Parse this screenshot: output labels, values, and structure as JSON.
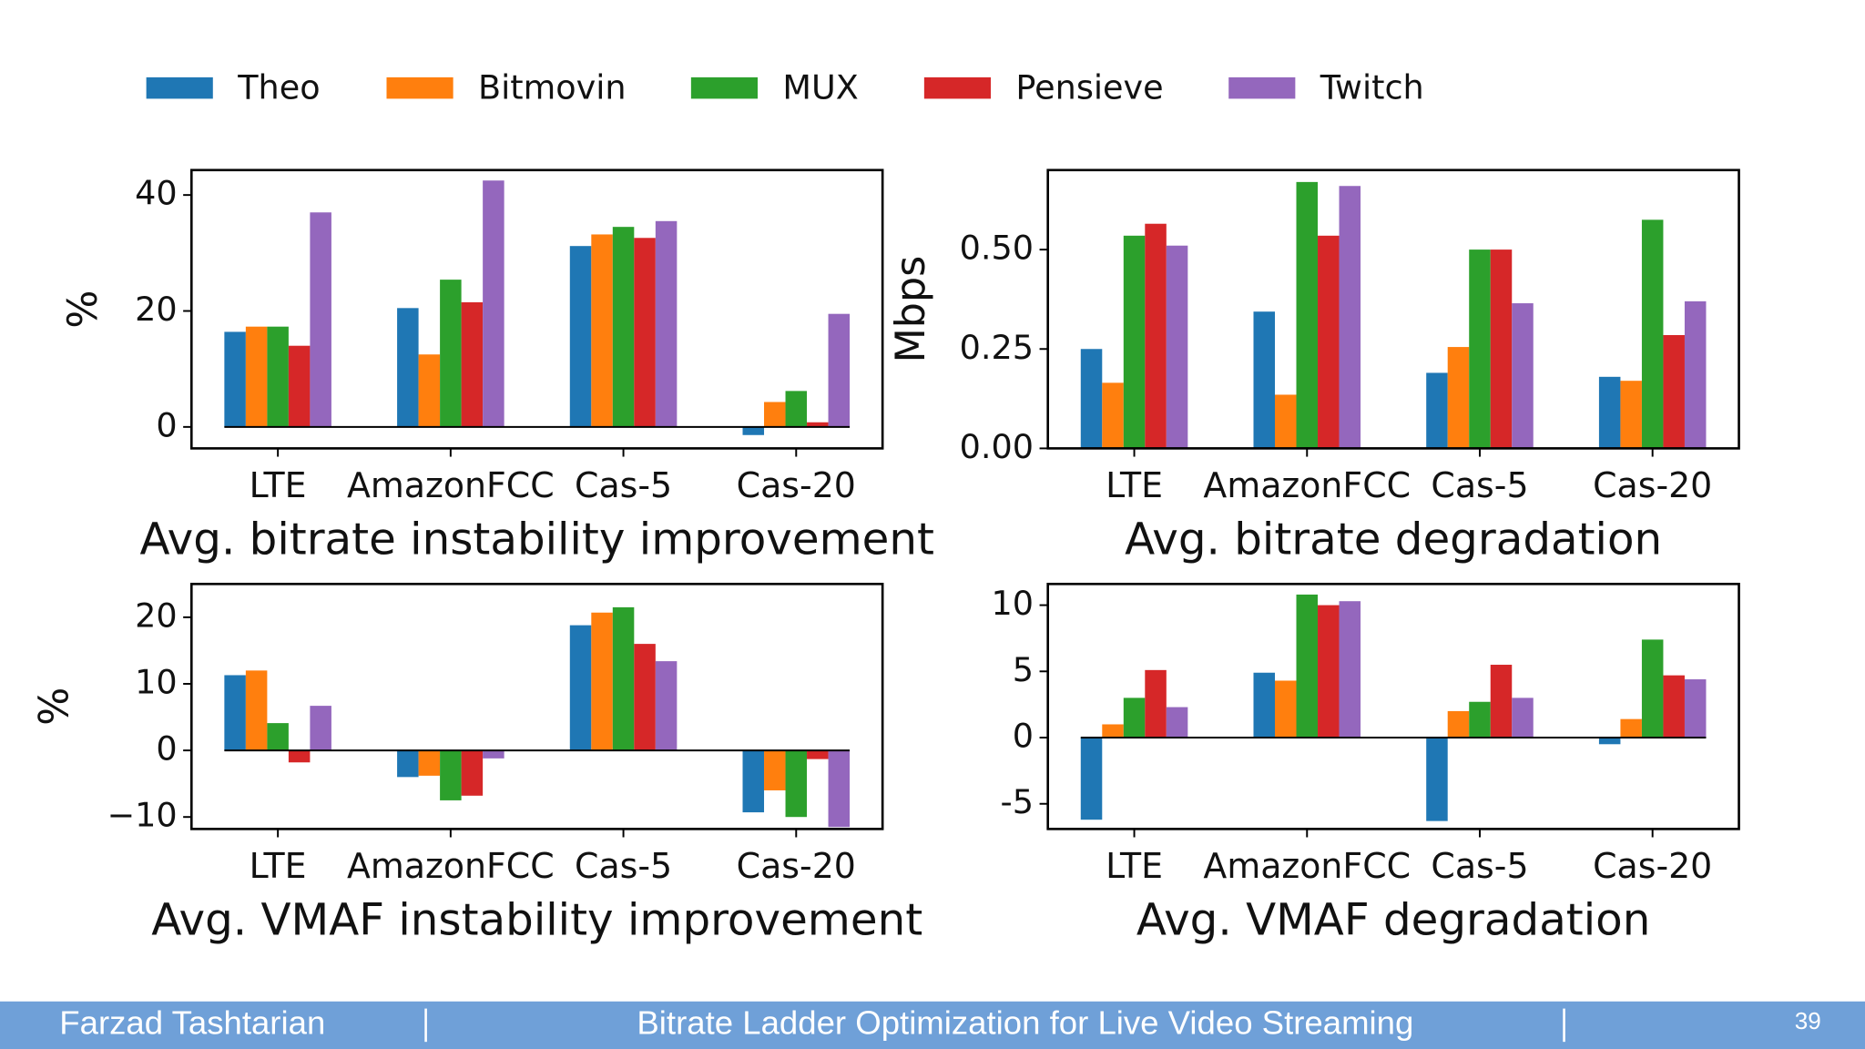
{
  "chart_data": [
    {
      "type": "bar",
      "xlabel": "Avg. bitrate instability improvement",
      "ylabel": "%",
      "categories": [
        "LTE",
        "AmazonFCC",
        "Cas-5",
        "Cas-20"
      ],
      "ylim": [
        -3.7,
        44.3
      ],
      "yticks": [
        0,
        20,
        40
      ],
      "series": [
        {
          "name": "Theo",
          "color": "#1f77b4",
          "values": [
            16.4,
            20.5,
            31.2,
            -1.4
          ]
        },
        {
          "name": "Bitmovin",
          "color": "#ff7f0e",
          "values": [
            17.3,
            12.5,
            33.2,
            4.3
          ]
        },
        {
          "name": "MUX",
          "color": "#2ca02c",
          "values": [
            17.3,
            25.4,
            34.5,
            6.2
          ]
        },
        {
          "name": "Pensieve",
          "color": "#d62728",
          "values": [
            14,
            21.5,
            32.6,
            0.8
          ]
        },
        {
          "name": "Twitch",
          "color": "#9467bd",
          "values": [
            37,
            42.5,
            35.5,
            19.5
          ]
        }
      ]
    },
    {
      "type": "bar",
      "xlabel": "Avg. bitrate degradation",
      "ylabel": "Mbps",
      "categories": [
        "LTE",
        "AmazonFCC",
        "Cas-5",
        "Cas-20"
      ],
      "ylim": [
        0,
        0.7
      ],
      "yticks": [
        {
          "value": 0,
          "label": "0.00"
        },
        {
          "value": 0.25,
          "label": "0.25"
        },
        {
          "value": 0.5,
          "label": "0.50"
        }
      ],
      "series": [
        {
          "color": "#1f77b4",
          "values": [
            0.25,
            0.344,
            0.19,
            0.18
          ]
        },
        {
          "color": "#ff7f0e",
          "values": [
            0.165,
            0.135,
            0.255,
            0.17
          ]
        },
        {
          "color": "#2ca02c",
          "values": [
            0.535,
            0.67,
            0.5,
            0.575
          ]
        },
        {
          "color": "#d62728",
          "values": [
            0.565,
            0.535,
            0.5,
            0.285
          ]
        },
        {
          "color": "#9467bd",
          "values": [
            0.51,
            0.66,
            0.365,
            0.37
          ]
        }
      ]
    },
    {
      "type": "bar",
      "xlabel": "Avg. VMAF instability improvement",
      "ylabel": "%",
      "categories": [
        "LTE",
        "AmazonFCC",
        "Cas-5",
        "Cas-20"
      ],
      "ylim": [
        -11.8,
        25
      ],
      "yticks": [
        {
          "value": -10,
          "label": "−10"
        },
        0,
        10,
        20
      ],
      "series": [
        {
          "color": "#1f77b4",
          "values": [
            11.3,
            -4,
            18.8,
            -9.3
          ]
        },
        {
          "color": "#ff7f0e",
          "values": [
            12,
            -3.8,
            20.7,
            -6
          ]
        },
        {
          "color": "#2ca02c",
          "values": [
            4.1,
            -7.5,
            21.5,
            -10
          ]
        },
        {
          "color": "#d62728",
          "values": [
            -1.8,
            -6.8,
            16,
            -1.3
          ]
        },
        {
          "color": "#9467bd",
          "values": [
            6.7,
            -1.2,
            13.4,
            -11.5
          ]
        }
      ]
    },
    {
      "type": "bar",
      "xlabel": "Avg. VMAF degradation",
      "categories": [
        "LTE",
        "AmazonFCC",
        "Cas-5",
        "Cas-20"
      ],
      "ylim": [
        -6.9,
        11.6
      ],
      "yticks": [
        -5,
        0,
        5,
        10
      ],
      "series": [
        {
          "color": "#1f77b4",
          "values": [
            -6.2,
            4.9,
            -6.3,
            -0.5
          ]
        },
        {
          "color": "#ff7f0e",
          "values": [
            1,
            4.3,
            2,
            1.4
          ]
        },
        {
          "color": "#2ca02c",
          "values": [
            3,
            10.8,
            2.7,
            7.4
          ]
        },
        {
          "color": "#d62728",
          "values": [
            5.1,
            10,
            5.5,
            4.7
          ]
        },
        {
          "color": "#9467bd",
          "values": [
            2.3,
            10.3,
            3,
            4.4
          ]
        }
      ]
    }
  ],
  "footer": {
    "author": "Farzad Tashtarian",
    "title": "Bitrate Ladder Optimization for Live Video Streaming",
    "page": "39"
  }
}
